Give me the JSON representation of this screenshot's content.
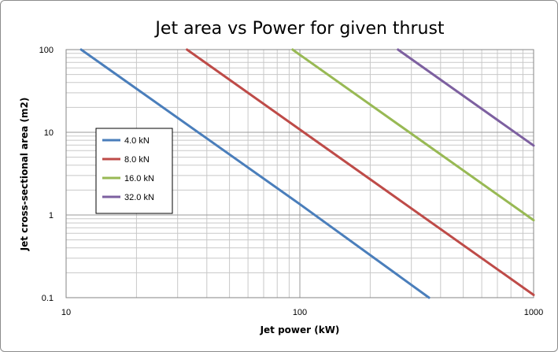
{
  "chart_data": {
    "type": "line",
    "title": "Jet area vs Power for given thrust",
    "xlabel": "Jet power (kW)",
    "ylabel": "Jet cross-sectional area (m2)",
    "xscale": "log",
    "yscale": "log",
    "xlim": [
      10,
      1000
    ],
    "ylim": [
      0.1,
      100
    ],
    "xticks": [
      "10",
      "100",
      "1000"
    ],
    "yticks": [
      "0.1",
      "1",
      "10",
      "100"
    ],
    "grid": true,
    "legend_position": "left",
    "series": [
      {
        "name": "4.0 kN",
        "color": "#4a7ebb",
        "x": [
          11.6,
          100,
          357
        ],
        "y": [
          100,
          1.35,
          0.1
        ]
      },
      {
        "name": "8.0 kN",
        "color": "#be4b48",
        "x": [
          32.9,
          100,
          1000
        ],
        "y": [
          100,
          10.8,
          0.108
        ]
      },
      {
        "name": "16.0 kN",
        "color": "#98b954",
        "x": [
          93.1,
          100,
          1000
        ],
        "y": [
          100,
          86.5,
          0.865
        ]
      },
      {
        "name": "32.0 kN",
        "color": "#7d60a0",
        "x": [
          263,
          1000
        ],
        "y": [
          100,
          6.92
        ]
      }
    ]
  }
}
